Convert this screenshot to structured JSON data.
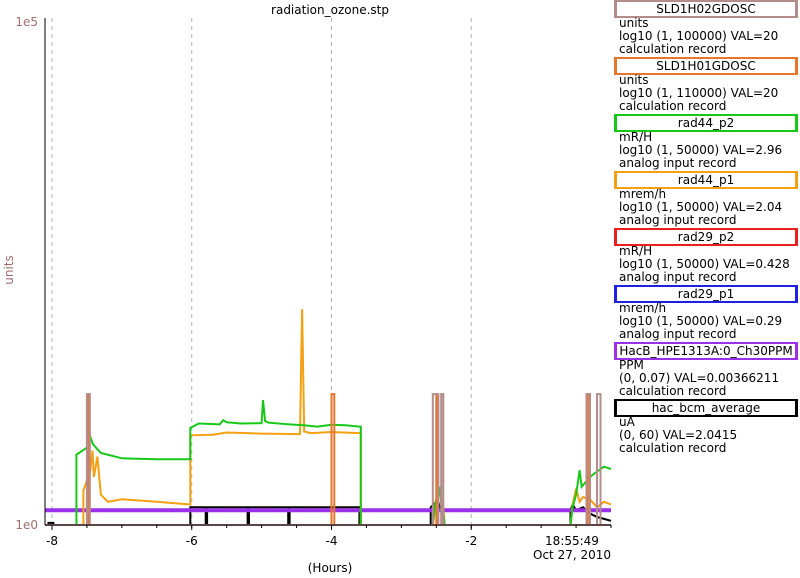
{
  "chart_data": {
    "type": "line",
    "title": "radiation_ozone.stp",
    "xlabel": "(Hours)",
    "ylabel": "units",
    "y_scale": "log",
    "ylim": [
      1,
      100000
    ],
    "y_ticks": [
      "1e0",
      "1e5"
    ],
    "xlim": [
      -8.1,
      0.0
    ],
    "x_ticks": [
      -8,
      -6,
      -4,
      -2
    ],
    "x_tick_labels": [
      "-8",
      "-6",
      "-4",
      "-2"
    ],
    "end_time": "18:55:49",
    "end_date": "Oct 27, 2010",
    "grid": true,
    "legend_position": "right",
    "series": [
      {
        "name": "SLD1H02GDOSC",
        "color": "#b48c8c",
        "unit": "units",
        "range": "log10 (1, 100000) VAL=20",
        "record": "calculation record",
        "x": [
          -8.1,
          -7.5,
          -7.5,
          -7.46,
          -7.46,
          -2.55,
          -2.55,
          -2.47,
          -2.47,
          -2.43,
          -2.43,
          -2.4,
          -2.4,
          -0.35,
          -0.35,
          -0.3,
          -0.3,
          -0.2,
          -0.2,
          -0.15,
          -0.15,
          0.0
        ],
        "y": [
          1,
          1,
          20,
          20,
          1,
          1,
          20,
          20,
          1,
          1,
          20,
          20,
          1,
          1,
          20,
          20,
          1,
          1,
          20,
          20,
          1,
          1
        ]
      },
      {
        "name": "SLD1H01GDOSC",
        "color": "#e8762a",
        "unit": "units",
        "range": "log10 (1, 110000) VAL=20",
        "record": "calculation record",
        "x": [
          -8.1,
          -7.48,
          -7.48,
          -7.46,
          -7.46,
          -4.0,
          -4.0,
          -3.96,
          -3.96,
          -2.5,
          -2.5,
          -2.48,
          -2.48,
          -0.33,
          -0.33,
          -0.3,
          -0.3,
          0.0
        ],
        "y": [
          1,
          1,
          20,
          20,
          1,
          1,
          20,
          20,
          1,
          1,
          20,
          20,
          1,
          1,
          20,
          20,
          1,
          1
        ]
      },
      {
        "name": "rad44_p2",
        "color": "#18c818",
        "unit": "mR/H",
        "range": "log10 (1, 50000) VAL=2.96",
        "record": "analog input record",
        "x": [
          -8.1,
          -7.65,
          -7.65,
          -7.48,
          -7.45,
          -7.42,
          -7.4,
          -7.3,
          -7.0,
          -6.5,
          -6.02,
          -6.02,
          -5.9,
          -5.6,
          -5.55,
          -5.5,
          -5.3,
          -5.0,
          -4.98,
          -4.95,
          -4.9,
          -4.6,
          -4.4,
          -4.2,
          -4.0,
          -3.8,
          -3.6,
          -3.58,
          -3.58,
          -2.55,
          -2.52,
          -2.5,
          -2.45,
          -2.42,
          -2.4,
          -2.38,
          -2.35,
          -0.58,
          -0.55,
          -0.5,
          -0.45,
          -0.42,
          -0.3,
          -0.2,
          -0.1,
          0.0
        ],
        "y": [
          1,
          1,
          5.0,
          6.0,
          7.5,
          6.5,
          6.2,
          5.2,
          4.6,
          4.5,
          4.5,
          9.2,
          10.2,
          10.0,
          11.0,
          10.5,
          10.2,
          10.3,
          17.5,
          10.8,
          10.4,
          10.0,
          9.8,
          9.5,
          9.9,
          9.8,
          9.5,
          9.5,
          1,
          1,
          1.6,
          1.8,
          2.4,
          1.4,
          1.3,
          1,
          1,
          1,
          1.5,
          2.0,
          3.5,
          2.4,
          3.0,
          3.4,
          3.8,
          3.6
        ]
      },
      {
        "name": "rad44_p1",
        "color": "#f4a010",
        "unit": "mrem/h",
        "range": "log10 (1, 50000) VAL=2.04",
        "record": "analog input record",
        "x": [
          -8.1,
          -7.55,
          -7.55,
          -7.45,
          -7.42,
          -7.4,
          -7.35,
          -7.3,
          -7.2,
          -7.0,
          -6.5,
          -6.02,
          -6.02,
          -5.7,
          -5.5,
          -5.0,
          -4.45,
          -4.42,
          -4.39,
          -4.3,
          -4.0,
          -3.6,
          -3.58,
          -3.58,
          -2.55,
          -2.5,
          -2.45,
          -2.4,
          -2.38,
          -0.58,
          -0.55,
          -0.5,
          -0.45,
          -0.4,
          -0.3,
          -0.2,
          -0.1,
          0.0
        ],
        "y": [
          1,
          1,
          2.2,
          3.5,
          5.5,
          3.0,
          4.8,
          2.0,
          1.7,
          1.8,
          1.7,
          1.6,
          7.8,
          7.9,
          8.3,
          8.1,
          8.0,
          140,
          8.5,
          8.2,
          8.4,
          8.2,
          8.2,
          1,
          1,
          1.8,
          2.2,
          1.5,
          1,
          1,
          1.6,
          2.3,
          1.7,
          1.9,
          1.8,
          1.5,
          1.7,
          1.6
        ]
      },
      {
        "name": "rad29_p2",
        "color": "#e82020",
        "unit": "mR/H",
        "range": "log10 (1, 50000) VAL=0.428",
        "record": "analog input record",
        "x": [
          -8.1,
          0.0
        ],
        "y": [
          1,
          1
        ]
      },
      {
        "name": "rad29_p1",
        "color": "#2020e0",
        "unit": "mrem/h",
        "range": "log10 (1, 50000) VAL=0.29",
        "record": "analog input record",
        "x": [
          -8.1,
          0.0
        ],
        "y": [
          1,
          1
        ]
      },
      {
        "name": "HacB_HPE1313A:0_Ch30PPM",
        "color": "#9a30e8",
        "unit": "PPM",
        "range": "(0, 0.07) VAL=0.00366211",
        "record": "calculation record",
        "x": [
          -8.1,
          -7.0,
          -6.0,
          -5.0,
          -4.0,
          -3.0,
          -2.0,
          -1.0,
          0.0
        ],
        "y": [
          1.4,
          1.4,
          1.4,
          1.4,
          1.4,
          1.4,
          1.4,
          1.4,
          1.4
        ]
      },
      {
        "name": "hac_bcm_average",
        "color": "#000000",
        "unit": "uA",
        "range": "(0, 60) VAL=2.0415",
        "record": "calculation record",
        "x": [
          -8.1,
          -8.05,
          -8.05,
          -7.98,
          -7.98,
          -6.02,
          -6.02,
          -5.8,
          -5.8,
          -5.78,
          -5.78,
          -5.2,
          -5.2,
          -5.18,
          -5.18,
          -4.62,
          -4.62,
          -4.6,
          -4.6,
          -3.6,
          -3.6,
          -2.58,
          -2.58,
          -2.5,
          -2.48,
          -2.45,
          -2.42,
          -2.4,
          -2.4,
          -0.58,
          -0.58,
          -0.55,
          -0.5,
          -0.4,
          -0.3,
          -0.2,
          -0.1,
          0.0
        ],
        "y": [
          1,
          1,
          1.05,
          1.05,
          1,
          1,
          1.5,
          1.5,
          1,
          1,
          1.5,
          1.5,
          1.02,
          1.02,
          1.5,
          1.5,
          1,
          1,
          1.5,
          1.5,
          1,
          1,
          1.5,
          1.7,
          1.8,
          1.5,
          1.4,
          1.5,
          1,
          1,
          1.4,
          1.6,
          1.4,
          1.5,
          1.3,
          1.2,
          1.15,
          1.1
        ]
      }
    ]
  }
}
